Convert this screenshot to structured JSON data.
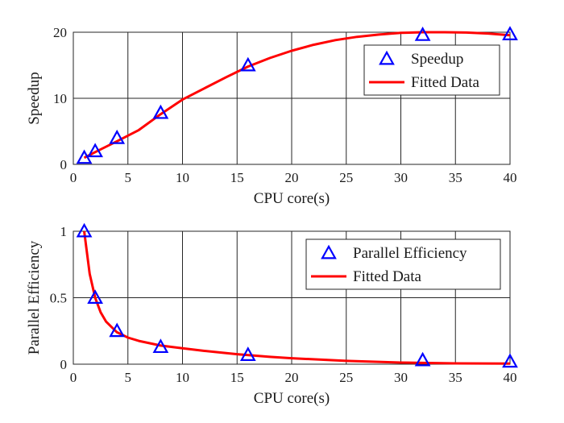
{
  "chart_data": [
    {
      "type": "line",
      "xlabel": "CPU core(s)",
      "ylabel": "Speedup",
      "xlim": [
        0,
        40
      ],
      "ylim": [
        0,
        20
      ],
      "xticks": [
        0,
        5,
        10,
        15,
        20,
        25,
        30,
        35,
        40
      ],
      "yticks": [
        0,
        10,
        20
      ],
      "grid": true,
      "legend_position": "top-right",
      "series": [
        {
          "name": "Speedup",
          "style": "markers",
          "marker": "triangle",
          "color": "#0000ff",
          "x": [
            1,
            2,
            4,
            8,
            16,
            32,
            40
          ],
          "y": [
            1,
            2,
            4,
            7.8,
            15,
            19.6,
            19.7
          ]
        },
        {
          "name": "Fitted Data",
          "style": "line",
          "color": "#ff0000",
          "x": [
            1,
            2,
            4,
            6,
            8,
            10,
            12,
            14,
            16,
            18,
            20,
            22,
            24,
            26,
            28,
            30,
            32,
            34,
            36,
            38,
            40
          ],
          "y": [
            1.0,
            1.85,
            3.5,
            5.2,
            7.6,
            9.8,
            11.5,
            13.2,
            14.8,
            16.1,
            17.2,
            18.1,
            18.8,
            19.3,
            19.65,
            19.9,
            20.0,
            20.0,
            19.95,
            19.8,
            19.55
          ]
        }
      ]
    },
    {
      "type": "line",
      "xlabel": "CPU core(s)",
      "ylabel": "Parallel Efficiency",
      "xlim": [
        0,
        40
      ],
      "ylim": [
        0,
        1
      ],
      "xticks": [
        0,
        5,
        10,
        15,
        20,
        25,
        30,
        35,
        40
      ],
      "yticks": [
        0,
        0.5,
        1
      ],
      "grid": true,
      "legend_position": "top-right",
      "series": [
        {
          "name": "Parallel Efficiency",
          "style": "markers",
          "marker": "triangle",
          "color": "#0000ff",
          "x": [
            1,
            2,
            4,
            8,
            16,
            32,
            40
          ],
          "y": [
            1.0,
            0.5,
            0.25,
            0.13,
            0.07,
            0.03,
            0.02
          ]
        },
        {
          "name": "Fitted Data",
          "style": "line",
          "color": "#ff0000",
          "x": [
            1,
            1.5,
            2,
            2.5,
            3,
            3.5,
            4,
            5,
            6,
            8,
            10,
            12,
            15,
            18,
            20,
            25,
            30,
            35,
            40
          ],
          "y": [
            1.0,
            0.68,
            0.5,
            0.39,
            0.32,
            0.28,
            0.24,
            0.2,
            0.175,
            0.14,
            0.12,
            0.1,
            0.075,
            0.055,
            0.045,
            0.025,
            0.012,
            0.006,
            0.004
          ]
        }
      ]
    }
  ]
}
